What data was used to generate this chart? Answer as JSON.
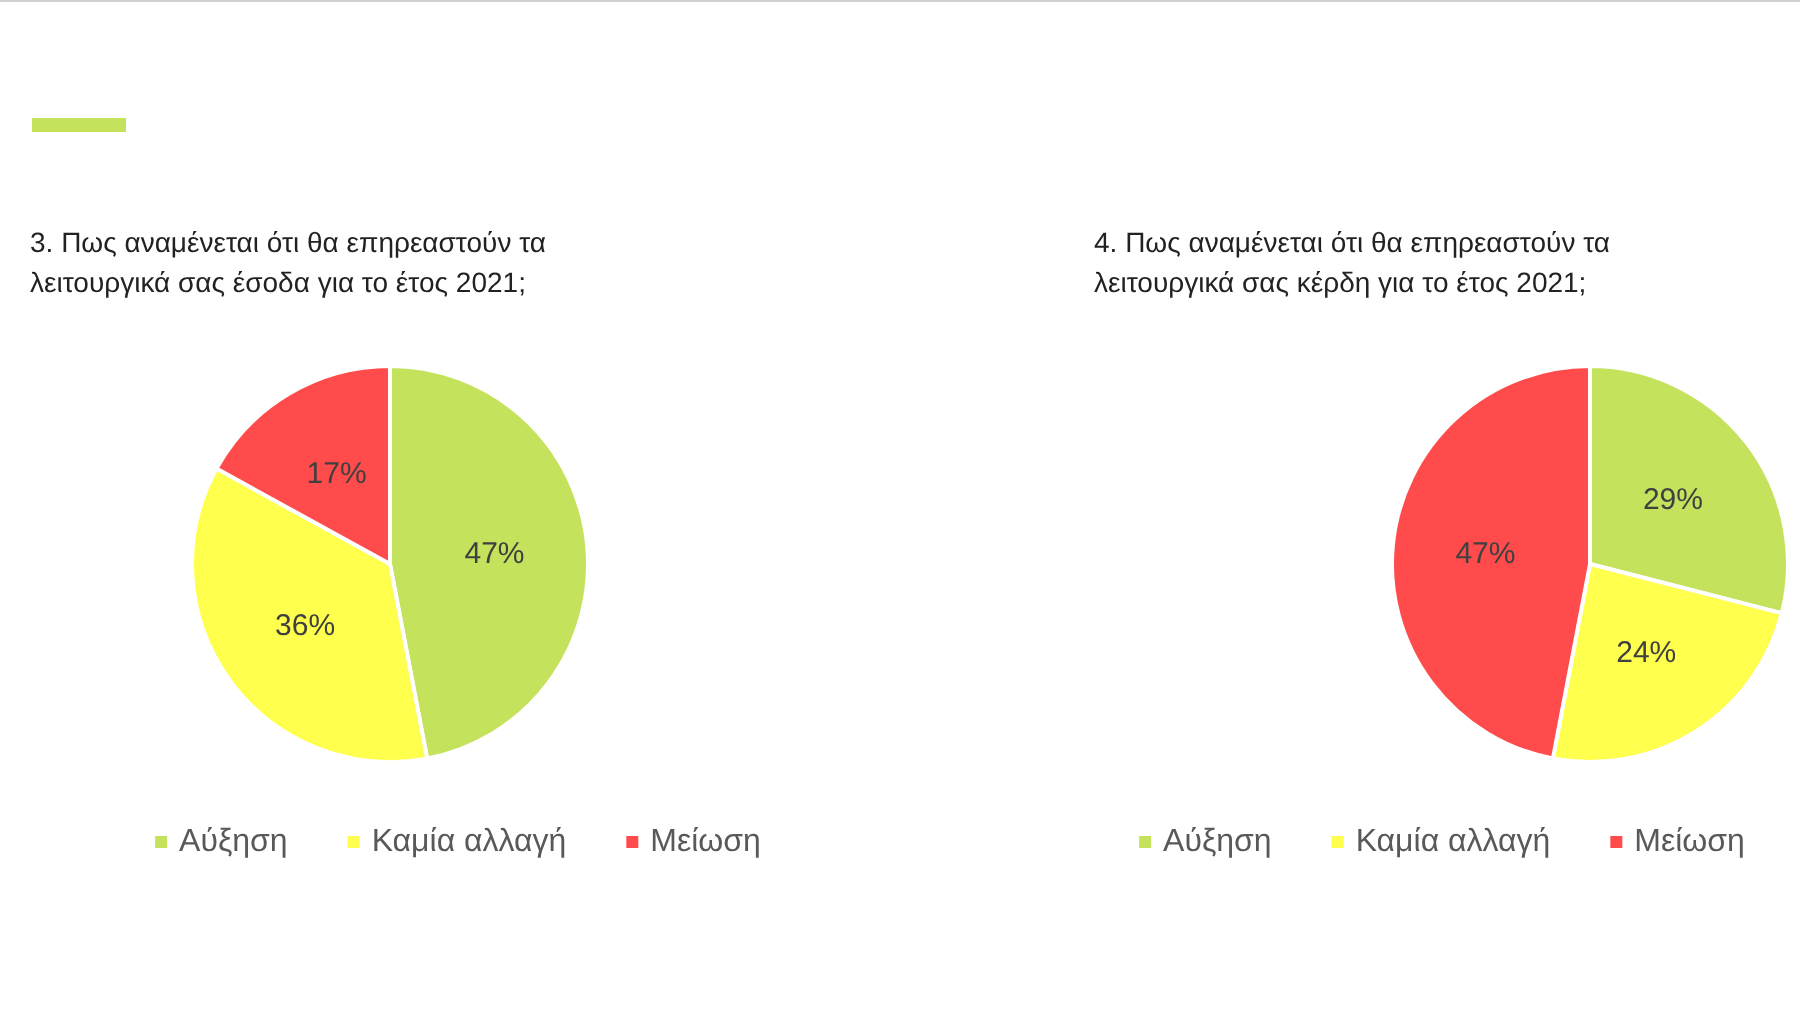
{
  "chart_data": [
    {
      "type": "pie",
      "title": "3. Πως αναμένεται ότι θα επηρεαστούν τα\nλειτουργικά σας έσοδα για το έτος 2021;",
      "categories": [
        "Αύξηση",
        "Καμία αλλαγή",
        "Μείωση"
      ],
      "values": [
        47,
        36,
        17
      ],
      "value_labels": [
        "47%",
        "36%",
        "17%"
      ],
      "colors": [
        "#c5e25d",
        "#ffff4d",
        "#ff4b4b"
      ],
      "legend": "bottom"
    },
    {
      "type": "pie",
      "title": "4. Πως αναμένεται ότι θα επηρεαστούν τα\nλειτουργικά σας κέρδη για το έτος 2021;",
      "categories": [
        "Αύξηση",
        "Καμία αλλαγή",
        "Μείωση"
      ],
      "values": [
        29,
        24,
        47
      ],
      "value_labels": [
        "29%",
        "24%",
        "47%"
      ],
      "colors": [
        "#c5e25d",
        "#ffff4d",
        "#ff4b4b"
      ],
      "legend": "bottom"
    }
  ]
}
